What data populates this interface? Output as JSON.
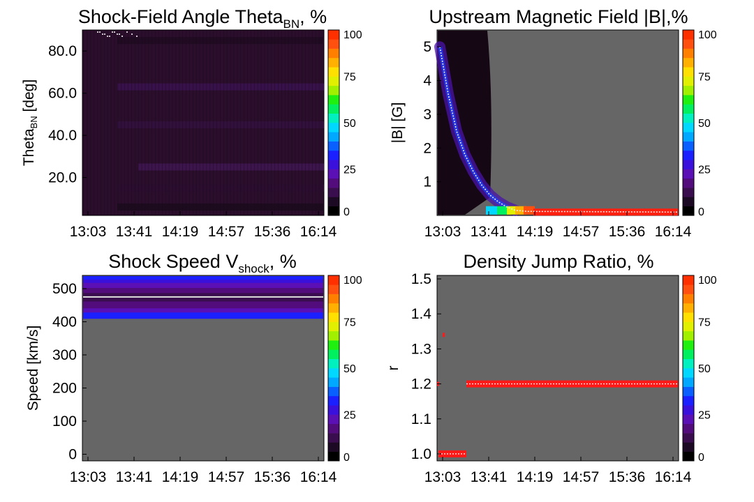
{
  "colorbar_ticks": [
    "0",
    "25",
    "50",
    "75",
    "100"
  ],
  "colorbar_colors": [
    "#000000",
    "#1c0a24",
    "#3a0d4e",
    "#520c7c",
    "#5a10b4",
    "#3a10dc",
    "#1a20ff",
    "#0a60ff",
    "#00a8ff",
    "#00d8ff",
    "#00f0c0",
    "#00f060",
    "#20f010",
    "#a0f000",
    "#e0f000",
    "#ffe000",
    "#ffb000",
    "#ff8000",
    "#ff5010",
    "#ff3000"
  ],
  "chart_data": [
    {
      "type": "heatmap",
      "title": "Shock-Field Angle Theta",
      "title_sub": "BN",
      "title_suffix": ", %",
      "ylabel": "Theta",
      "ylabel_sub": "BN",
      "ylabel_suffix": " [deg]",
      "xticks": [
        "13:03",
        "13:41",
        "14:19",
        "14:57",
        "15:36",
        "16:14"
      ],
      "yticks": [
        "20.0",
        "40.0",
        "60.0",
        "80.0"
      ],
      "ylim": [
        2,
        90
      ],
      "colorbar_range": [
        0,
        100
      ],
      "background": "#2a0e2c",
      "note_values": "low-percentage distribution (about 0-10%) across 0-90 deg, slightly brighter bands near 25, 45, 63 deg"
    },
    {
      "type": "heatmap",
      "title": "Upstream Magnetic Field |B|,%",
      "ylabel": "|B| [G]",
      "xticks": [
        "13:03",
        "13:41",
        "14:19",
        "14:57",
        "15:36",
        "16:14"
      ],
      "yticks": [
        "1",
        "2",
        "3",
        "4",
        "5"
      ],
      "ylim": [
        0,
        5.5
      ],
      "colorbar_range": [
        0,
        100
      ],
      "decay_curve_B": [
        5.0,
        3.6,
        2.5,
        1.8,
        1.3,
        0.9,
        0.6,
        0.4,
        0.25,
        0.15
      ],
      "late_value_B": 0.1
    },
    {
      "type": "heatmap",
      "title": "Shock Speed V",
      "title_sub": "shock",
      "title_suffix": ", %",
      "ylabel": "Speed [km/s]",
      "xticks": [
        "13:03",
        "13:41",
        "14:19",
        "14:57",
        "15:36",
        "16:14"
      ],
      "yticks": [
        "0",
        "100",
        "200",
        "300",
        "400",
        "500"
      ],
      "ylim": [
        -20,
        540
      ],
      "colorbar_range": [
        0,
        100
      ],
      "speed_band_kms": [
        410,
        540
      ],
      "median_speed_kms": 475
    },
    {
      "type": "heatmap",
      "title": "Density Jump Ratio, %",
      "ylabel": "r",
      "xticks": [
        "13:03",
        "13:41",
        "14:19",
        "14:57",
        "15:36",
        "16:14"
      ],
      "yticks": [
        "1.0",
        "1.1",
        "1.2",
        "1.3",
        "1.4",
        "1.5"
      ],
      "ylim": [
        0.98,
        1.51
      ],
      "colorbar_range": [
        0,
        100
      ],
      "early_ratio": 1.0,
      "late_ratio": 1.2
    }
  ]
}
